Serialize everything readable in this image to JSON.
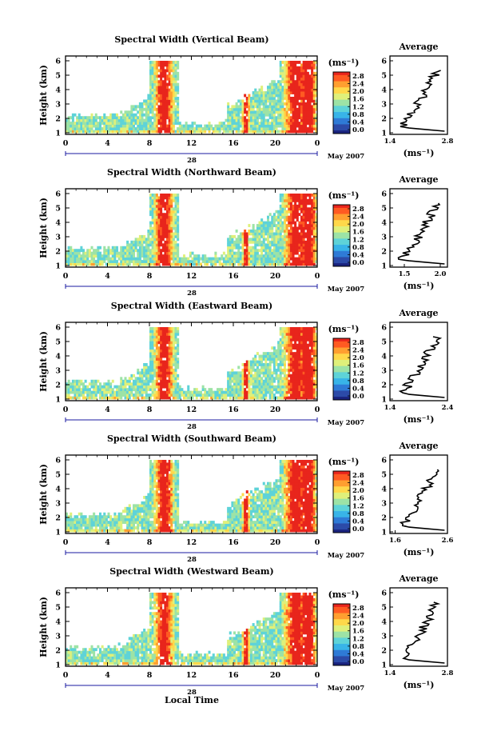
{
  "figure": {
    "xlabel": "Local Time",
    "date_label": "28",
    "month_label": "May 2007",
    "ylabel": "Height (km)",
    "unit_label": "(ms⁻¹)",
    "profile_title": "Average"
  },
  "panels": [
    {
      "title": "Spectral Width (Vertical Beam)",
      "cbar_ticks": [
        "2.8",
        "2.4",
        "2.0",
        "1.6",
        "1.2",
        "0.8",
        "0.4",
        "0.0"
      ],
      "profile_xticks": [
        "1.4",
        "2.8"
      ],
      "profile_xlim": [
        1.4,
        2.8
      ]
    },
    {
      "title": "Spectral Width (Northward Beam)",
      "cbar_ticks": [
        "2.8",
        "2.4",
        "2.0",
        "1.6",
        "1.2",
        "0.8",
        "0.4",
        "0.0"
      ],
      "profile_xticks": [
        "1.5",
        "2.0"
      ],
      "profile_xlim": [
        1.3,
        2.1
      ]
    },
    {
      "title": "Spectral Width (Eastward Beam)",
      "cbar_ticks": [
        "2.8",
        "2.4",
        "2.0",
        "1.6",
        "1.2",
        "0.8",
        "0.4",
        "0.0"
      ],
      "profile_xticks": [
        "1.4",
        "2.4"
      ],
      "profile_xlim": [
        1.4,
        2.4
      ]
    },
    {
      "title": "Spectral Width (Southward Beam)",
      "cbar_ticks": [
        "2.8",
        "2.4",
        "2.0",
        "1.6",
        "1.2",
        "0.8",
        "0.4",
        "0.0"
      ],
      "profile_xticks": [
        "1.6",
        "2.6"
      ],
      "profile_xlim": [
        1.5,
        2.6
      ]
    },
    {
      "title": "Spectral Width (Westward Beam)",
      "cbar_ticks": [
        "2.8",
        "2.4",
        "2.0",
        "1.6",
        "1.2",
        "0.8",
        "0.4",
        "0.0"
      ],
      "profile_xticks": [
        "1.4",
        "2.8"
      ],
      "profile_xlim": [
        1.4,
        2.8
      ]
    }
  ],
  "chart_data": {
    "type": "heatmap",
    "x_ticks": [
      "0",
      "4",
      "8",
      "12",
      "16",
      "20",
      "0"
    ],
    "xlim": [
      0,
      24
    ],
    "y_ticks": [
      "1",
      "2",
      "3",
      "4",
      "5",
      "6"
    ],
    "ylim": [
      1,
      6
    ],
    "zlim": [
      0.0,
      2.8
    ],
    "colormap": [
      "#1a237e",
      "#2c4ba8",
      "#2f7bd6",
      "#38b4e8",
      "#5ed3d8",
      "#9de3a6",
      "#dff07a",
      "#ffd84a",
      "#ff9f30",
      "#ff5a22",
      "#e8251c"
    ]
  }
}
